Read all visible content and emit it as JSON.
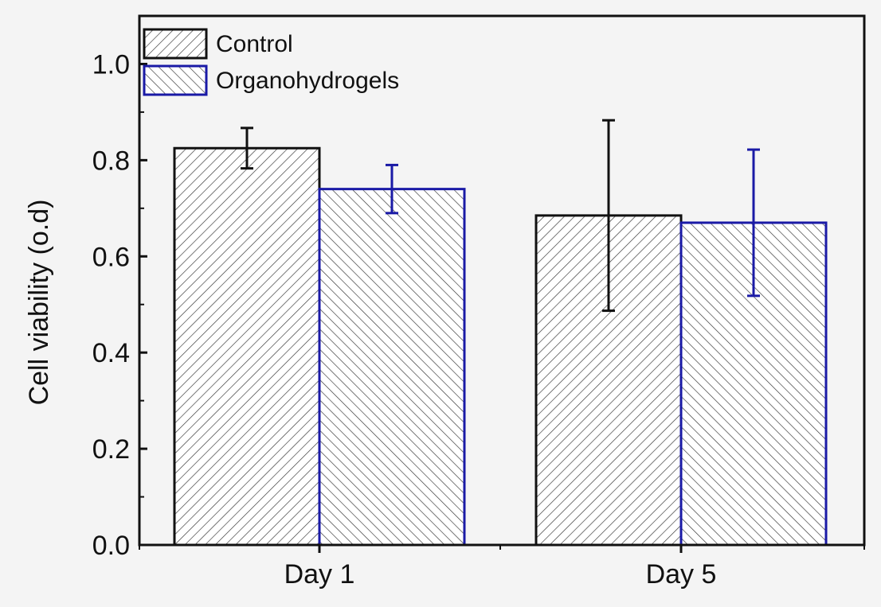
{
  "chart_data": {
    "type": "bar",
    "title": "",
    "xlabel": "",
    "ylabel": "Cell viability (o.d)",
    "categories": [
      "Day 1",
      "Day 5"
    ],
    "ylim": [
      0,
      1.1
    ],
    "yticks": [
      "0.0",
      "0.2",
      "0.4",
      "0.6",
      "0.8",
      "1.0"
    ],
    "grid": false,
    "legend_position": "top-left",
    "series": [
      {
        "name": "Control",
        "values": [
          0.825,
          0.685
        ],
        "error": [
          0.042,
          0.198
        ],
        "color": "#111111",
        "hatch": "forward-diagonal"
      },
      {
        "name": "Organohydrogels",
        "values": [
          0.74,
          0.67
        ],
        "error": [
          0.05,
          0.152
        ],
        "color": "#1a1aa6",
        "hatch": "back-diagonal"
      }
    ]
  }
}
